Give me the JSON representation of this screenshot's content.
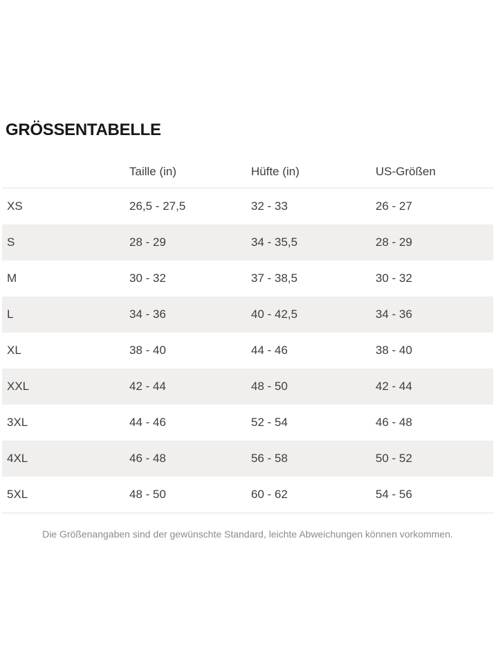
{
  "chart_data": {
    "type": "table",
    "title": "GRÖSSENTABELLE",
    "columns": [
      "",
      "Taille (in)",
      "Hüfte (in)",
      "US-Größen"
    ],
    "rows": [
      {
        "size": "XS",
        "taille": "26,5 - 27,5",
        "huefte": "32 - 33",
        "us": "26 - 27"
      },
      {
        "size": "S",
        "taille": "28 - 29",
        "huefte": "34 - 35,5",
        "us": "28 - 29"
      },
      {
        "size": "M",
        "taille": "30 - 32",
        "huefte": "37 - 38,5",
        "us": "30 - 32"
      },
      {
        "size": "L",
        "taille": "34 - 36",
        "huefte": "40 - 42,5",
        "us": "34 - 36"
      },
      {
        "size": "XL",
        "taille": "38 - 40",
        "huefte": "44 - 46",
        "us": "38 - 40"
      },
      {
        "size": "XXL",
        "taille": "42 - 44",
        "huefte": "48 - 50",
        "us": "42 - 44"
      },
      {
        "size": "3XL",
        "taille": "44 - 46",
        "huefte": "52 - 54",
        "us": "46 - 48"
      },
      {
        "size": "4XL",
        "taille": "46 - 48",
        "huefte": "56 - 58",
        "us": "50 - 52"
      },
      {
        "size": "5XL",
        "taille": "48 - 50",
        "huefte": "60 - 62",
        "us": "54 - 56"
      }
    ],
    "footnote": "Die Größenangaben sind der gewünschte Standard, leichte Abweichungen können vorkommen.",
    "colors": {
      "stripe": "#f0efee",
      "border": "#e4e3e1",
      "text": "#3d3d3d",
      "title": "#181818",
      "footnote_text": "#8b8b8b"
    },
    "layout": {
      "zebra_striping": true,
      "striped_rows": [
        "S",
        "L",
        "XXL",
        "4XL"
      ]
    }
  }
}
